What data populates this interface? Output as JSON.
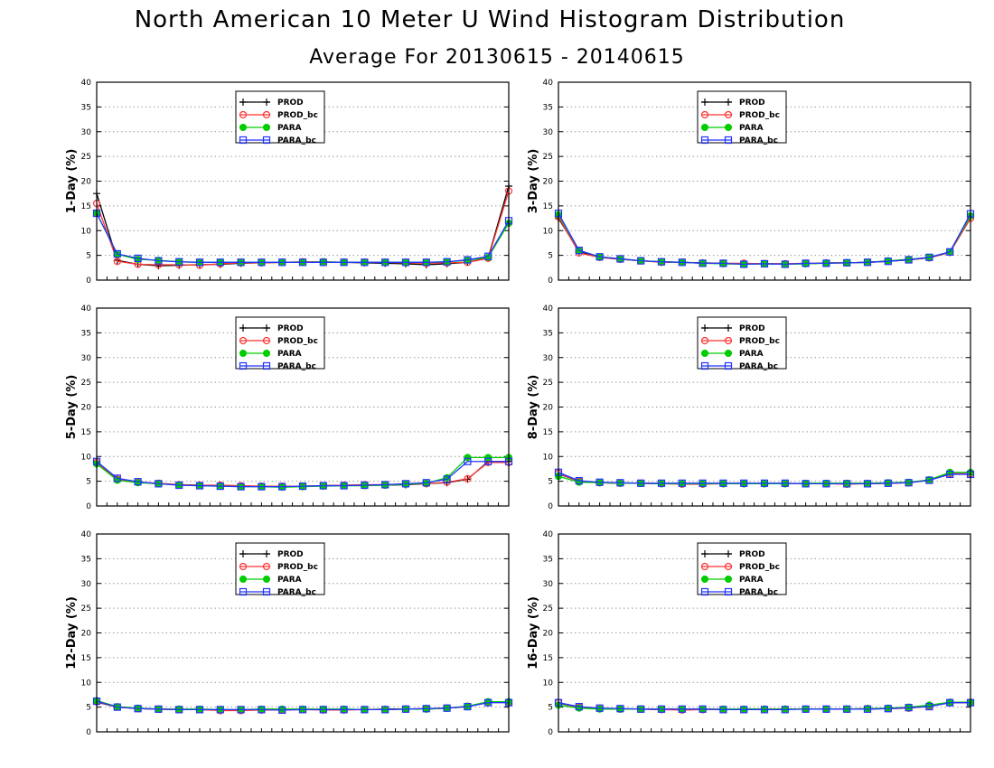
{
  "title": "North American 10 Meter U Wind Histogram Distribution",
  "subtitle": "Average For 20130615 - 20140615",
  "series_styles": [
    {
      "name": "PROD",
      "color": "#000000",
      "marker": "plus"
    },
    {
      "name": "PROD_bc",
      "color": "#ff3333",
      "marker": "circle"
    },
    {
      "name": "PARA",
      "color": "#00cc00",
      "marker": "dot"
    },
    {
      "name": "PARA_bc",
      "color": "#2233ff",
      "marker": "square"
    }
  ],
  "chart_data": [
    {
      "type": "line",
      "ylabel": "1-Day (%)",
      "ylim": [
        0,
        40
      ],
      "yticks": [
        0,
        5,
        10,
        15,
        20,
        25,
        30,
        35,
        40
      ],
      "grid": true,
      "legend": "top-center",
      "x": [
        1,
        2,
        3,
        4,
        5,
        6,
        7,
        8,
        9,
        10,
        11,
        12,
        13,
        14,
        15,
        16,
        17,
        18,
        19,
        20,
        21
      ],
      "series": [
        {
          "name": "PROD",
          "values": [
            17.5,
            4.0,
            3.2,
            2.9,
            3.0,
            3.1,
            3.2,
            3.4,
            3.5,
            3.6,
            3.6,
            3.6,
            3.6,
            3.5,
            3.4,
            3.3,
            3.1,
            3.3,
            3.6,
            4.5,
            19.0
          ]
        },
        {
          "name": "PROD_bc",
          "values": [
            15.5,
            3.8,
            3.2,
            3.1,
            3.1,
            3.0,
            3.3,
            3.5,
            3.5,
            3.6,
            3.7,
            3.7,
            3.6,
            3.6,
            3.6,
            3.5,
            3.4,
            3.5,
            3.6,
            4.4,
            18.0
          ]
        },
        {
          "name": "PARA",
          "values": [
            13.5,
            5.2,
            4.2,
            4.0,
            3.7,
            3.6,
            3.6,
            3.6,
            3.6,
            3.6,
            3.6,
            3.7,
            3.6,
            3.6,
            3.6,
            3.6,
            3.6,
            3.7,
            4.0,
            4.6,
            11.5
          ]
        },
        {
          "name": "PARA_bc",
          "values": [
            13.5,
            5.3,
            4.4,
            3.9,
            3.7,
            3.6,
            3.6,
            3.6,
            3.6,
            3.6,
            3.6,
            3.6,
            3.6,
            3.6,
            3.6,
            3.6,
            3.6,
            3.7,
            4.1,
            4.8,
            12.0
          ]
        }
      ]
    },
    {
      "type": "line",
      "ylabel": "3-Day (%)",
      "ylim": [
        0,
        40
      ],
      "yticks": [
        0,
        5,
        10,
        15,
        20,
        25,
        30,
        35,
        40
      ],
      "grid": true,
      "legend": "top-center",
      "x": [
        1,
        2,
        3,
        4,
        5,
        6,
        7,
        8,
        9,
        10,
        11,
        12,
        13,
        14,
        15,
        16,
        17,
        18,
        19,
        20,
        21
      ],
      "series": [
        {
          "name": "PROD",
          "values": [
            12.5,
            5.8,
            4.6,
            4.2,
            3.9,
            3.7,
            3.6,
            3.5,
            3.4,
            3.3,
            3.3,
            3.3,
            3.3,
            3.5,
            3.5,
            3.6,
            3.8,
            4.1,
            4.5,
            5.6,
            12.5
          ]
        },
        {
          "name": "PROD_bc",
          "values": [
            12.8,
            5.5,
            4.6,
            4.2,
            3.9,
            3.6,
            3.6,
            3.4,
            3.4,
            3.4,
            3.3,
            3.3,
            3.4,
            3.4,
            3.5,
            3.6,
            3.8,
            4.1,
            4.5,
            5.6,
            12.5
          ]
        },
        {
          "name": "PARA",
          "values": [
            13.2,
            6.0,
            4.7,
            4.3,
            3.9,
            3.7,
            3.6,
            3.4,
            3.3,
            3.2,
            3.3,
            3.2,
            3.3,
            3.4,
            3.5,
            3.6,
            3.9,
            4.2,
            4.6,
            5.7,
            13.0
          ]
        },
        {
          "name": "PARA_bc",
          "values": [
            13.5,
            6.0,
            4.7,
            4.3,
            3.9,
            3.7,
            3.6,
            3.4,
            3.4,
            3.2,
            3.3,
            3.2,
            3.4,
            3.4,
            3.5,
            3.6,
            3.8,
            4.1,
            4.6,
            5.7,
            13.4
          ]
        }
      ]
    },
    {
      "type": "line",
      "ylabel": "5-Day (%)",
      "ylim": [
        0,
        40
      ],
      "yticks": [
        0,
        5,
        10,
        15,
        20,
        25,
        30,
        35,
        40
      ],
      "grid": true,
      "legend": "top-center",
      "x": [
        1,
        2,
        3,
        4,
        5,
        6,
        7,
        8,
        9,
        10,
        11,
        12,
        13,
        14,
        15,
        16,
        17,
        18,
        19,
        20,
        21
      ],
      "series": [
        {
          "name": "PROD",
          "values": [
            9.0,
            5.5,
            4.8,
            4.5,
            4.3,
            4.2,
            4.1,
            4.0,
            4.0,
            4.0,
            4.0,
            4.1,
            4.2,
            4.2,
            4.2,
            4.3,
            4.5,
            4.7,
            5.4,
            9.0,
            9.0
          ]
        },
        {
          "name": "PROD_bc",
          "values": [
            8.8,
            5.4,
            4.8,
            4.6,
            4.3,
            4.2,
            4.2,
            4.1,
            4.0,
            4.0,
            4.0,
            4.1,
            4.2,
            4.3,
            4.3,
            4.4,
            4.5,
            4.8,
            5.5,
            8.8,
            8.8
          ]
        },
        {
          "name": "PARA",
          "values": [
            8.5,
            5.2,
            4.7,
            4.5,
            4.2,
            4.1,
            4.0,
            3.9,
            3.9,
            3.8,
            3.9,
            4.0,
            4.1,
            4.1,
            4.2,
            4.4,
            4.6,
            5.7,
            9.8,
            9.8,
            9.8
          ]
        },
        {
          "name": "PARA_bc",
          "values": [
            9.0,
            5.6,
            4.9,
            4.5,
            4.2,
            4.1,
            4.0,
            3.9,
            3.9,
            3.9,
            4.0,
            4.1,
            4.1,
            4.2,
            4.3,
            4.5,
            4.7,
            5.4,
            9.0,
            9.0,
            9.0
          ]
        }
      ]
    },
    {
      "type": "line",
      "ylabel": "8-Day (%)",
      "ylim": [
        0,
        40
      ],
      "yticks": [
        0,
        5,
        10,
        15,
        20,
        25,
        30,
        35,
        40
      ],
      "grid": true,
      "legend": "top-center",
      "x": [
        1,
        2,
        3,
        4,
        5,
        6,
        7,
        8,
        9,
        10,
        11,
        12,
        13,
        14,
        15,
        16,
        17,
        18,
        19,
        20,
        21
      ],
      "series": [
        {
          "name": "PROD",
          "values": [
            6.5,
            5.0,
            4.7,
            4.6,
            4.6,
            4.5,
            4.5,
            4.5,
            4.5,
            4.5,
            4.5,
            4.5,
            4.5,
            4.5,
            4.5,
            4.5,
            4.6,
            4.7,
            5.2,
            6.5,
            6.5
          ]
        },
        {
          "name": "PROD_bc",
          "values": [
            6.6,
            5.0,
            4.7,
            4.6,
            4.6,
            4.5,
            4.4,
            4.4,
            4.5,
            4.5,
            4.5,
            4.5,
            4.5,
            4.5,
            4.4,
            4.5,
            4.6,
            4.7,
            5.2,
            6.5,
            6.5
          ]
        },
        {
          "name": "PARA",
          "values": [
            6.0,
            4.8,
            4.7,
            4.6,
            4.6,
            4.5,
            4.5,
            4.5,
            4.5,
            4.5,
            4.5,
            4.5,
            4.6,
            4.6,
            4.6,
            4.6,
            4.7,
            4.8,
            5.3,
            6.8,
            6.8
          ]
        },
        {
          "name": "PARA_bc",
          "values": [
            6.8,
            5.1,
            4.8,
            4.7,
            4.6,
            4.6,
            4.6,
            4.6,
            4.6,
            4.6,
            4.6,
            4.6,
            4.5,
            4.5,
            4.5,
            4.5,
            4.6,
            4.7,
            5.2,
            6.4,
            6.4
          ]
        }
      ]
    },
    {
      "type": "line",
      "ylabel": "12-Day (%)",
      "ylim": [
        0,
        40
      ],
      "yticks": [
        0,
        5,
        10,
        15,
        20,
        25,
        30,
        35,
        40
      ],
      "grid": true,
      "legend": "top-center",
      "x": [
        1,
        2,
        3,
        4,
        5,
        6,
        7,
        8,
        9,
        10,
        11,
        12,
        13,
        14,
        15,
        16,
        17,
        18,
        19,
        20,
        21
      ],
      "series": [
        {
          "name": "PROD",
          "values": [
            6.0,
            5.0,
            4.7,
            4.6,
            4.5,
            4.5,
            4.4,
            4.4,
            4.4,
            4.5,
            4.5,
            4.5,
            4.5,
            4.5,
            4.6,
            4.6,
            4.6,
            4.8,
            5.1,
            6.0,
            6.0
          ]
        },
        {
          "name": "PROD_bc",
          "values": [
            6.1,
            5.0,
            4.7,
            4.6,
            4.5,
            4.5,
            4.3,
            4.3,
            4.4,
            4.4,
            4.5,
            4.4,
            4.4,
            4.5,
            4.5,
            4.6,
            4.7,
            4.8,
            5.1,
            6.0,
            6.0
          ]
        },
        {
          "name": "PARA",
          "values": [
            6.3,
            5.1,
            4.8,
            4.6,
            4.6,
            4.6,
            4.5,
            4.5,
            4.6,
            4.6,
            4.6,
            4.6,
            4.6,
            4.5,
            4.5,
            4.6,
            4.6,
            4.8,
            5.2,
            6.1,
            6.1
          ]
        },
        {
          "name": "PARA_bc",
          "values": [
            6.2,
            5.0,
            4.7,
            4.6,
            4.5,
            4.5,
            4.5,
            4.5,
            4.5,
            4.4,
            4.5,
            4.5,
            4.5,
            4.5,
            4.5,
            4.6,
            4.7,
            4.8,
            5.1,
            5.9,
            5.9
          ]
        }
      ]
    },
    {
      "type": "line",
      "ylabel": "16-Day (%)",
      "ylim": [
        0,
        40
      ],
      "yticks": [
        0,
        5,
        10,
        15,
        20,
        25,
        30,
        35,
        40
      ],
      "grid": true,
      "legend": "top-center",
      "x": [
        1,
        2,
        3,
        4,
        5,
        6,
        7,
        8,
        9,
        10,
        11,
        12,
        13,
        14,
        15,
        16,
        17,
        18,
        19,
        20,
        21
      ],
      "series": [
        {
          "name": "PROD",
          "values": [
            5.8,
            5.0,
            4.7,
            4.6,
            4.6,
            4.5,
            4.5,
            4.5,
            4.5,
            4.6,
            4.6,
            4.6,
            4.6,
            4.6,
            4.6,
            4.6,
            4.7,
            4.8,
            5.2,
            5.9,
            5.9
          ]
        },
        {
          "name": "PROD_bc",
          "values": [
            5.9,
            5.0,
            4.7,
            4.6,
            4.6,
            4.5,
            4.4,
            4.5,
            4.5,
            4.5,
            4.6,
            4.6,
            4.6,
            4.6,
            4.6,
            4.7,
            4.7,
            4.8,
            5.2,
            5.9,
            5.9
          ]
        },
        {
          "name": "PARA",
          "values": [
            5.4,
            4.8,
            4.6,
            4.6,
            4.6,
            4.6,
            4.6,
            4.6,
            4.6,
            4.6,
            4.6,
            4.6,
            4.6,
            4.6,
            4.6,
            4.7,
            4.8,
            5.0,
            5.4,
            6.0,
            6.0
          ]
        },
        {
          "name": "PARA_bc",
          "values": [
            5.9,
            5.1,
            4.8,
            4.7,
            4.6,
            4.6,
            4.6,
            4.6,
            4.5,
            4.5,
            4.5,
            4.5,
            4.6,
            4.6,
            4.6,
            4.6,
            4.7,
            4.9,
            5.1,
            5.9,
            5.9
          ]
        }
      ]
    }
  ]
}
